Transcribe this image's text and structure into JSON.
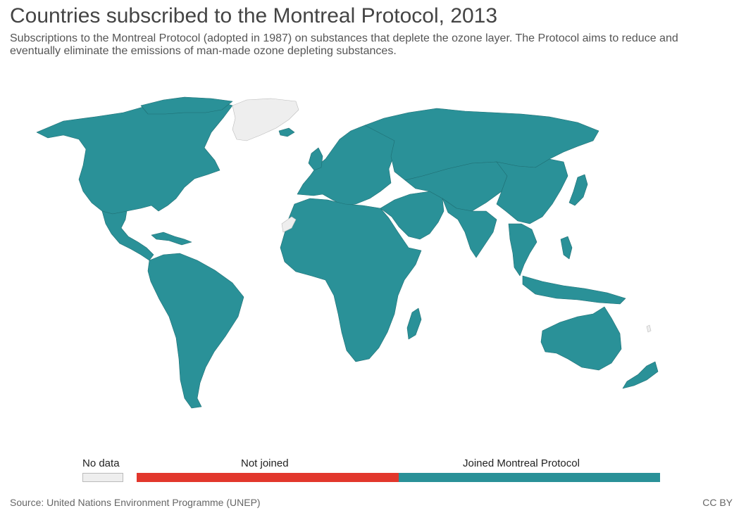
{
  "header": {
    "title": "Countries subscribed to the Montreal Protocol, 2013",
    "subtitle": "Subscriptions to the Montreal Protocol (adopted in 1987) on substances that deplete the ozone layer. The Protocol aims to reduce and eventually eliminate the emissions of man-made ozone depleting substances."
  },
  "map": {
    "year": "2013",
    "categories": [
      {
        "key": "no_data",
        "label": "No data",
        "color": "#eeeeee"
      },
      {
        "key": "not_joined",
        "label": "Not joined",
        "color": "#e2372c"
      },
      {
        "key": "joined",
        "label": "Joined Montreal Protocol",
        "color": "#2a9198"
      }
    ],
    "regions": [
      {
        "name": "North America",
        "status": "joined"
      },
      {
        "name": "Greenland",
        "status": "no_data"
      },
      {
        "name": "Central America & Caribbean",
        "status": "joined"
      },
      {
        "name": "South America",
        "status": "joined"
      },
      {
        "name": "Europe",
        "status": "joined"
      },
      {
        "name": "Western Sahara",
        "status": "no_data"
      },
      {
        "name": "Africa",
        "status": "joined"
      },
      {
        "name": "Middle East",
        "status": "joined"
      },
      {
        "name": "Russia & Central Asia",
        "status": "joined"
      },
      {
        "name": "South Asia",
        "status": "joined"
      },
      {
        "name": "East Asia",
        "status": "joined"
      },
      {
        "name": "Japan",
        "status": "joined"
      },
      {
        "name": "Southeast Asia",
        "status": "joined"
      },
      {
        "name": "Australia",
        "status": "joined"
      },
      {
        "name": "New Zealand",
        "status": "joined"
      }
    ]
  },
  "legend": {
    "no_data_label": "No data",
    "not_joined_label": "Not joined",
    "joined_label": "Joined Montreal Protocol"
  },
  "footer": {
    "source": "Source: United Nations Environment Programme (UNEP)",
    "license": "CC BY"
  }
}
